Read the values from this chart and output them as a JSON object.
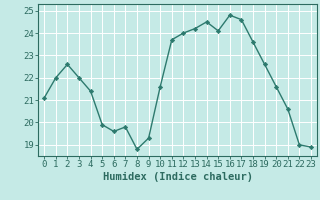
{
  "x": [
    0,
    1,
    2,
    3,
    4,
    5,
    6,
    7,
    8,
    9,
    10,
    11,
    12,
    13,
    14,
    15,
    16,
    17,
    18,
    19,
    20,
    21,
    22,
    23
  ],
  "y": [
    21.1,
    22.0,
    22.6,
    22.0,
    21.4,
    19.9,
    19.6,
    19.8,
    18.8,
    19.3,
    21.6,
    23.7,
    24.0,
    24.2,
    24.5,
    24.1,
    24.8,
    24.6,
    23.6,
    22.6,
    21.6,
    20.6,
    19.0,
    18.9
  ],
  "line_color": "#2d7a6e",
  "marker": "D",
  "marker_size": 2.2,
  "bg_color": "#c5eae6",
  "grid_color": "#b0d8d4",
  "xlabel": "Humidex (Indice chaleur)",
  "xlim": [
    -0.5,
    23.5
  ],
  "ylim": [
    18.5,
    25.3
  ],
  "yticks": [
    19,
    20,
    21,
    22,
    23,
    24,
    25
  ],
  "xticks": [
    0,
    1,
    2,
    3,
    4,
    5,
    6,
    7,
    8,
    9,
    10,
    11,
    12,
    13,
    14,
    15,
    16,
    17,
    18,
    19,
    20,
    21,
    22,
    23
  ],
  "tick_color": "#2d6b60",
  "label_fontsize": 6.5,
  "xlabel_fontsize": 7.5,
  "axis_color": "#2d6b60",
  "linewidth": 1.0
}
